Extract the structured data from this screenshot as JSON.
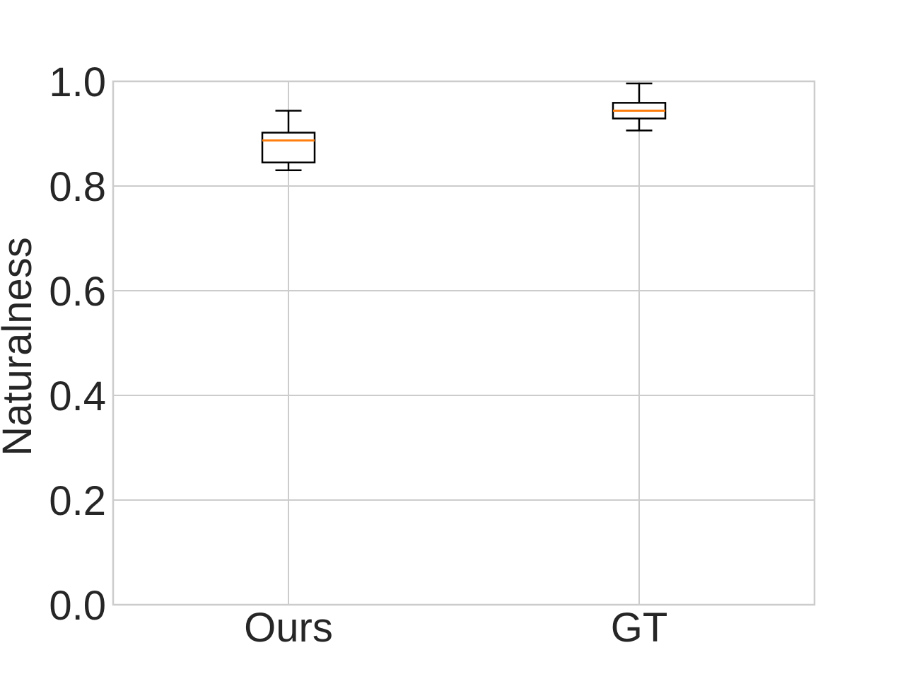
{
  "chart_data": {
    "type": "box",
    "title": "",
    "xlabel": "",
    "ylabel": "Naturalness",
    "ylim": [
      0.0,
      1.0
    ],
    "yticks": [
      "0.0",
      "0.2",
      "0.4",
      "0.6",
      "0.8",
      "1.0"
    ],
    "grid": true,
    "categories": [
      "Ours",
      "GT"
    ],
    "boxes": [
      {
        "category": "Ours",
        "whisker_low": 0.83,
        "q1": 0.845,
        "median": 0.887,
        "q3": 0.902,
        "whisker_high": 0.944
      },
      {
        "category": "GT",
        "whisker_low": 0.906,
        "q1": 0.929,
        "median": 0.944,
        "q3": 0.959,
        "whisker_high": 0.996
      }
    ],
    "colors": {
      "grid": "#cccccc",
      "box": "#000000",
      "median": "#ff7f0e",
      "text": "#262626"
    }
  }
}
